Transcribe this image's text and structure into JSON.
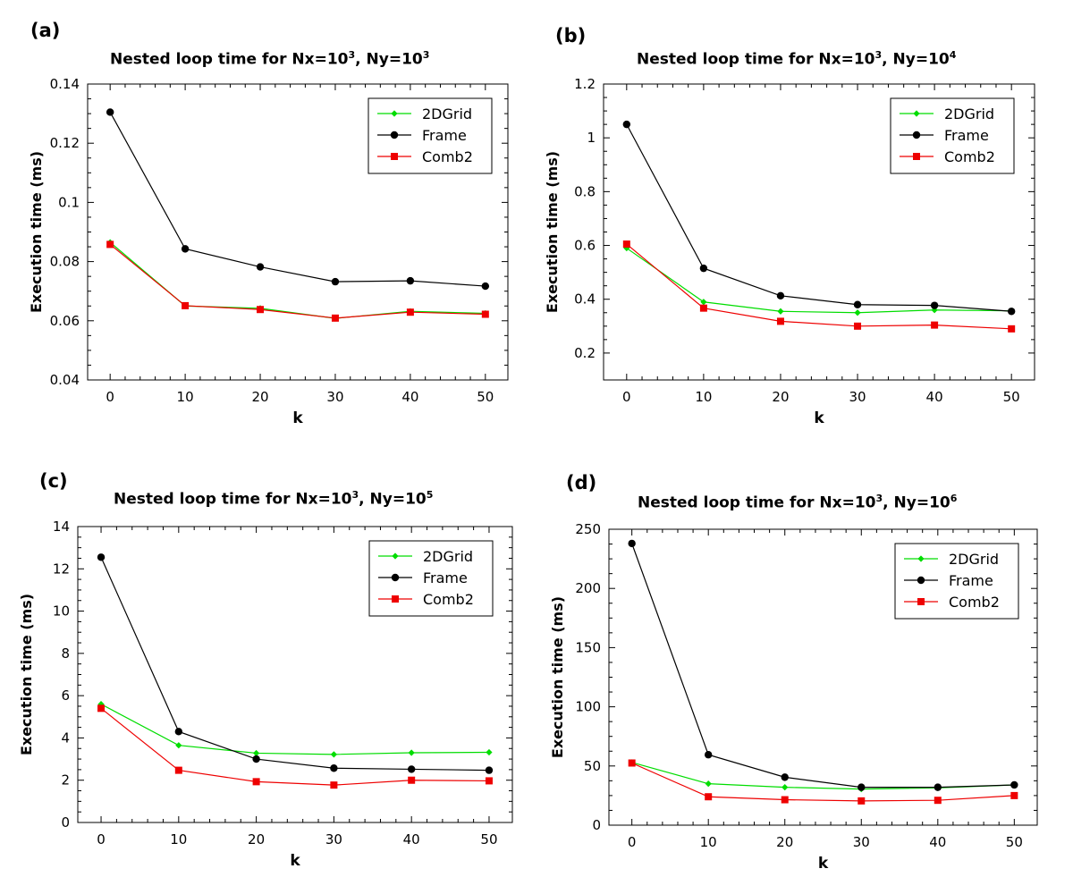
{
  "chart_data": [
    {
      "panel_label": "(a)",
      "type": "line",
      "title": {
        "prefix": "Nested loop time for Nx=10",
        "exp1": "3",
        "middle": ", Ny=10",
        "exp2": "3"
      },
      "xlabel": "k",
      "ylabel": "Execution time (ms)",
      "x": [
        0,
        10,
        20,
        30,
        40,
        50
      ],
      "xticks": [
        "0",
        "10",
        "20",
        "30",
        "40",
        "50"
      ],
      "xlim": [
        -3,
        53
      ],
      "ylim": [
        0.04,
        0.14
      ],
      "yticks": [
        "0.04",
        "0.06",
        "0.08",
        "0.1",
        "0.12",
        "0.14"
      ],
      "ytick_values": [
        0.04,
        0.06,
        0.08,
        0.1,
        0.12,
        0.14
      ],
      "legend_position": "top-right",
      "series": [
        {
          "name": "2DGrid",
          "color": "#00dd00",
          "marker": "diamond",
          "values": [
            0.0865,
            0.065,
            0.0642,
            0.0608,
            0.0632,
            0.0625
          ]
        },
        {
          "name": "Frame",
          "color": "#000000",
          "marker": "circle",
          "values": [
            0.1305,
            0.0843,
            0.0782,
            0.0732,
            0.0735,
            0.0717
          ]
        },
        {
          "name": "Comb2",
          "color": "#ee0000",
          "marker": "square",
          "values": [
            0.0858,
            0.0651,
            0.0638,
            0.0609,
            0.0629,
            0.0622
          ]
        }
      ]
    },
    {
      "panel_label": "(b)",
      "type": "line",
      "title": {
        "prefix": "Nested loop time for Nx=10",
        "exp1": "3",
        "middle": ", Ny=10",
        "exp2": "4"
      },
      "xlabel": "k",
      "ylabel": "Execution time (ms)",
      "x": [
        0,
        10,
        20,
        30,
        40,
        50
      ],
      "xticks": [
        "0",
        "10",
        "20",
        "30",
        "40",
        "50"
      ],
      "xlim": [
        -3,
        53
      ],
      "ylim": [
        0.1,
        1.2
      ],
      "yticks": [
        "0.2",
        "0.4",
        "0.6",
        "0.8",
        "1",
        "1.2"
      ],
      "ytick_values": [
        0.2,
        0.4,
        0.6,
        0.8,
        1.0,
        1.2
      ],
      "legend_position": "top-right",
      "series": [
        {
          "name": "2DGrid",
          "color": "#00dd00",
          "marker": "diamond",
          "values": [
            0.59,
            0.39,
            0.355,
            0.35,
            0.36,
            0.357
          ]
        },
        {
          "name": "Frame",
          "color": "#000000",
          "marker": "circle",
          "values": [
            1.05,
            0.515,
            0.413,
            0.38,
            0.377,
            0.355
          ]
        },
        {
          "name": "Comb2",
          "color": "#ee0000",
          "marker": "square",
          "values": [
            0.605,
            0.367,
            0.318,
            0.3,
            0.304,
            0.29
          ]
        }
      ]
    },
    {
      "panel_label": "(c)",
      "type": "line",
      "title": {
        "prefix": "Nested loop time for Nx=10",
        "exp1": "3",
        "middle": ", Ny=10",
        "exp2": "5"
      },
      "xlabel": "k",
      "ylabel": "Execution time (ms)",
      "x": [
        0,
        10,
        20,
        30,
        40,
        50
      ],
      "xticks": [
        "0",
        "10",
        "20",
        "30",
        "40",
        "50"
      ],
      "xlim": [
        -3,
        53
      ],
      "ylim": [
        0,
        14
      ],
      "yticks": [
        "0",
        "2",
        "4",
        "6",
        "8",
        "10",
        "12",
        "14"
      ],
      "ytick_values": [
        0,
        2,
        4,
        6,
        8,
        10,
        12,
        14
      ],
      "legend_position": "top-right",
      "series": [
        {
          "name": "2DGrid",
          "color": "#00dd00",
          "marker": "diamond",
          "values": [
            5.6,
            3.65,
            3.28,
            3.22,
            3.3,
            3.32
          ]
        },
        {
          "name": "Frame",
          "color": "#000000",
          "marker": "circle",
          "values": [
            12.55,
            4.3,
            3.0,
            2.57,
            2.52,
            2.47
          ]
        },
        {
          "name": "Comb2",
          "color": "#ee0000",
          "marker": "square",
          "values": [
            5.4,
            2.47,
            1.93,
            1.77,
            2.0,
            1.97
          ]
        }
      ]
    },
    {
      "panel_label": "(d)",
      "type": "line",
      "title": {
        "prefix": "Nested loop time for Nx=10",
        "exp1": "3",
        "middle": ", Ny=10",
        "exp2": "6"
      },
      "xlabel": "k",
      "ylabel": "Execution time (ms)",
      "x": [
        0,
        10,
        20,
        30,
        40,
        50
      ],
      "xticks": [
        "0",
        "10",
        "20",
        "30",
        "40",
        "50"
      ],
      "xlim": [
        -3,
        53
      ],
      "ylim": [
        0,
        250
      ],
      "yticks": [
        "0",
        "50",
        "100",
        "150",
        "200",
        "250"
      ],
      "ytick_values": [
        0,
        50,
        100,
        150,
        200,
        250
      ],
      "legend_position": "top-right",
      "series": [
        {
          "name": "2DGrid",
          "color": "#00dd00",
          "marker": "diamond",
          "values": [
            53,
            35,
            32,
            30.5,
            31.5,
            34
          ]
        },
        {
          "name": "Frame",
          "color": "#000000",
          "marker": "circle",
          "values": [
            238,
            59.5,
            40.5,
            32,
            32,
            34
          ]
        },
        {
          "name": "Comb2",
          "color": "#ee0000",
          "marker": "square",
          "values": [
            52.5,
            24,
            21.5,
            20.5,
            21,
            25
          ]
        }
      ]
    }
  ]
}
